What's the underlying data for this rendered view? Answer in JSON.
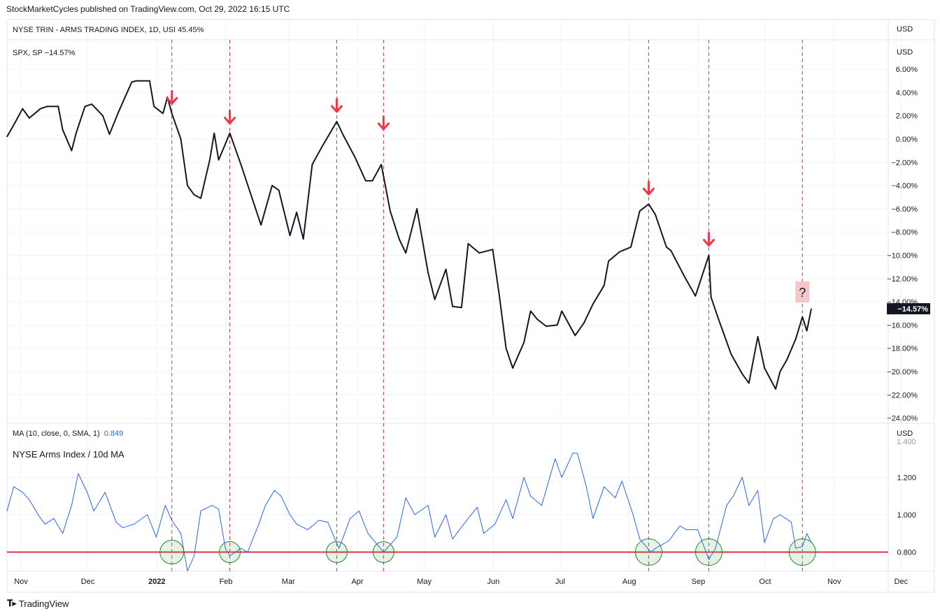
{
  "header": {
    "published": "StockMarketCycles published on TradingView.com, Oct 29, 2022 16:15 UTC"
  },
  "footer": {
    "brand": "TradingView",
    "logo": "tv-logo-icon"
  },
  "panes": {
    "trin_legend": "NYSE TRIN - ARMS TRADING INDEX, 1D, USI  45.45%",
    "trin_unit": "USD",
    "spx_legend": "SPX, SP  −14.57%",
    "spx_unit": "USD",
    "ma_legend_prefix": "MA (10, close, 0, SMA, 1)",
    "ma_legend_value": "0.849",
    "ma_title": "NYSE Arms Index  /  10d MA",
    "ma_unit": "USD",
    "ma_clipped_top_label": "1.400",
    "question_mark": "?"
  },
  "colors": {
    "spx_line": "#131722",
    "ma_line": "#2962ff",
    "arrow": "#f23645",
    "vline": "#e0323c",
    "hline": "#e0323c",
    "circle": "#2e7d32",
    "circle_fill": "rgba(76,175,80,0.15)",
    "grid": "#f0f3fa",
    "last_price_bg": "#131722"
  },
  "chart_data": [
    {
      "type": "line",
      "name": "SPX",
      "y_unit": "percent",
      "ylim": [
        -24.5,
        7
      ],
      "y_ticks": [
        "6.00%",
        "4.00%",
        "2.00%",
        "0.00%",
        "−2.00%",
        "−4.00%",
        "−6.00%",
        "−8.00%",
        "−10.00%",
        "−12.00%",
        "−14.00%",
        "−16.00%",
        "−18.00%",
        "−20.00%",
        "−22.00%",
        "−24.00%"
      ],
      "last_value_label": "−14.57%",
      "x_ticks": [
        "Nov",
        "Dec",
        "2022",
        "Feb",
        "Mar",
        "Apr",
        "May",
        "Jun",
        "Jul",
        "Aug",
        "Sep",
        "Oct",
        "Nov",
        "Dec"
      ],
      "points": [
        [
          "2021-11-01",
          0.2
        ],
        [
          "2021-11-04",
          1.2
        ],
        [
          "2021-11-08",
          2.6
        ],
        [
          "2021-11-11",
          1.8
        ],
        [
          "2021-11-16",
          2.6
        ],
        [
          "2021-11-19",
          2.8
        ],
        [
          "2021-11-24",
          2.8
        ],
        [
          "2021-11-26",
          0.8
        ],
        [
          "2021-11-30",
          -1.0
        ],
        [
          "2021-12-02",
          0.5
        ],
        [
          "2021-12-06",
          2.8
        ],
        [
          "2021-12-09",
          3.0
        ],
        [
          "2021-12-14",
          2.0
        ],
        [
          "2021-12-17",
          0.4
        ],
        [
          "2021-12-21",
          2.3
        ],
        [
          "2021-12-27",
          4.9
        ],
        [
          "2021-12-29",
          5.0
        ],
        [
          "2022-01-04",
          5.0
        ],
        [
          "2022-01-06",
          2.8
        ],
        [
          "2022-01-10",
          2.2
        ],
        [
          "2022-01-12",
          3.6
        ],
        [
          "2022-01-14",
          2.2
        ],
        [
          "2022-01-18",
          0.0
        ],
        [
          "2022-01-21",
          -4.0
        ],
        [
          "2022-01-24",
          -4.8
        ],
        [
          "2022-01-27",
          -5.1
        ],
        [
          "2022-01-31",
          -1.8
        ],
        [
          "2022-02-02",
          0.5
        ],
        [
          "2022-02-04",
          -1.8
        ],
        [
          "2022-02-09",
          0.5
        ],
        [
          "2022-02-14",
          -2.2
        ],
        [
          "2022-02-18",
          -4.5
        ],
        [
          "2022-02-23",
          -7.4
        ],
        [
          "2022-02-28",
          -4.0
        ],
        [
          "2022-03-03",
          -4.4
        ],
        [
          "2022-03-08",
          -8.3
        ],
        [
          "2022-03-11",
          -6.3
        ],
        [
          "2022-03-14",
          -8.6
        ],
        [
          "2022-03-18",
          -2.2
        ],
        [
          "2022-03-22",
          -0.8
        ],
        [
          "2022-03-29",
          1.5
        ],
        [
          "2022-04-01",
          0.3
        ],
        [
          "2022-04-06",
          -1.5
        ],
        [
          "2022-04-11",
          -3.6
        ],
        [
          "2022-04-14",
          -3.6
        ],
        [
          "2022-04-18",
          -2.2
        ],
        [
          "2022-04-22",
          -6.2
        ],
        [
          "2022-04-26",
          -8.6
        ],
        [
          "2022-04-29",
          -9.8
        ],
        [
          "2022-05-04",
          -6.0
        ],
        [
          "2022-05-09",
          -11.5
        ],
        [
          "2022-05-12",
          -13.8
        ],
        [
          "2022-05-17",
          -11.2
        ],
        [
          "2022-05-20",
          -14.4
        ],
        [
          "2022-05-24",
          -14.5
        ],
        [
          "2022-05-27",
          -9.0
        ],
        [
          "2022-06-01",
          -9.8
        ],
        [
          "2022-06-07",
          -9.5
        ],
        [
          "2022-06-10",
          -13.5
        ],
        [
          "2022-06-13",
          -18.0
        ],
        [
          "2022-06-16",
          -19.7
        ],
        [
          "2022-06-21",
          -17.5
        ],
        [
          "2022-06-24",
          -14.8
        ],
        [
          "2022-06-27",
          -15.5
        ],
        [
          "2022-07-01",
          -16.1
        ],
        [
          "2022-07-06",
          -16.0
        ],
        [
          "2022-07-08",
          -14.8
        ],
        [
          "2022-07-14",
          -16.9
        ],
        [
          "2022-07-18",
          -15.8
        ],
        [
          "2022-07-22",
          -14.2
        ],
        [
          "2022-07-27",
          -12.6
        ],
        [
          "2022-07-29",
          -10.5
        ],
        [
          "2022-08-03",
          -9.7
        ],
        [
          "2022-08-08",
          -9.3
        ],
        [
          "2022-08-12",
          -6.2
        ],
        [
          "2022-08-16",
          -5.6
        ],
        [
          "2022-08-19",
          -6.5
        ],
        [
          "2022-08-24",
          -9.3
        ],
        [
          "2022-08-26",
          -9.6
        ],
        [
          "2022-09-01",
          -11.8
        ],
        [
          "2022-09-06",
          -13.5
        ],
        [
          "2022-09-12",
          -10.0
        ],
        [
          "2022-09-13",
          -13.6
        ],
        [
          "2022-09-16",
          -15.3
        ],
        [
          "2022-09-22",
          -18.5
        ],
        [
          "2022-09-27",
          -20.2
        ],
        [
          "2022-09-30",
          -21.0
        ],
        [
          "2022-10-04",
          -17.0
        ],
        [
          "2022-10-07",
          -19.7
        ],
        [
          "2022-10-12",
          -21.5
        ],
        [
          "2022-10-14",
          -20.0
        ],
        [
          "2022-10-17",
          -19.0
        ],
        [
          "2022-10-21",
          -17.2
        ],
        [
          "2022-10-24",
          -15.3
        ],
        [
          "2022-10-26",
          -16.5
        ],
        [
          "2022-10-28",
          -14.6
        ]
      ]
    },
    {
      "type": "line",
      "name": "MA (10, close, 0, SMA, 1)",
      "ylim": [
        0.69,
        1.43
      ],
      "y_ticks": [
        "1.200",
        "1.000",
        "0.800"
      ],
      "last_value": 0.849,
      "reference_line": 0.8,
      "points": [
        [
          "2021-11-01",
          1.02
        ],
        [
          "2021-11-04",
          1.15
        ],
        [
          "2021-11-08",
          1.12
        ],
        [
          "2021-11-11",
          1.08
        ],
        [
          "2021-11-15",
          1.0
        ],
        [
          "2021-11-18",
          0.95
        ],
        [
          "2021-11-22",
          0.98
        ],
        [
          "2021-11-26",
          0.9
        ],
        [
          "2021-11-30",
          1.05
        ],
        [
          "2021-12-03",
          1.22
        ],
        [
          "2021-12-07",
          1.12
        ],
        [
          "2021-12-10",
          1.02
        ],
        [
          "2021-12-15",
          1.12
        ],
        [
          "2021-12-20",
          0.96
        ],
        [
          "2021-12-23",
          0.93
        ],
        [
          "2021-12-28",
          0.95
        ],
        [
          "2022-01-03",
          1.0
        ],
        [
          "2022-01-07",
          0.88
        ],
        [
          "2022-01-11",
          1.05
        ],
        [
          "2022-01-14",
          0.97
        ],
        [
          "2022-01-18",
          0.9
        ],
        [
          "2022-01-21",
          0.7
        ],
        [
          "2022-01-24",
          0.78
        ],
        [
          "2022-01-27",
          1.02
        ],
        [
          "2022-02-01",
          1.05
        ],
        [
          "2022-02-04",
          1.03
        ],
        [
          "2022-02-07",
          0.82
        ],
        [
          "2022-02-09",
          0.78
        ],
        [
          "2022-02-14",
          0.82
        ],
        [
          "2022-02-17",
          0.8
        ],
        [
          "2022-02-22",
          0.95
        ],
        [
          "2022-02-25",
          1.05
        ],
        [
          "2022-03-01",
          1.13
        ],
        [
          "2022-03-04",
          1.1
        ],
        [
          "2022-03-08",
          1.0
        ],
        [
          "2022-03-11",
          0.95
        ],
        [
          "2022-03-16",
          0.92
        ],
        [
          "2022-03-21",
          0.97
        ],
        [
          "2022-03-25",
          0.96
        ],
        [
          "2022-03-30",
          0.82
        ],
        [
          "2022-04-04",
          0.98
        ],
        [
          "2022-04-08",
          1.02
        ],
        [
          "2022-04-12",
          0.9
        ],
        [
          "2022-04-19",
          0.8
        ],
        [
          "2022-04-25",
          0.88
        ],
        [
          "2022-04-29",
          1.09
        ],
        [
          "2022-05-03",
          1.0
        ],
        [
          "2022-05-09",
          1.05
        ],
        [
          "2022-05-12",
          0.88
        ],
        [
          "2022-05-17",
          1.0
        ],
        [
          "2022-05-20",
          0.87
        ],
        [
          "2022-05-25",
          0.95
        ],
        [
          "2022-05-31",
          1.04
        ],
        [
          "2022-06-03",
          0.9
        ],
        [
          "2022-06-08",
          0.95
        ],
        [
          "2022-06-13",
          1.08
        ],
        [
          "2022-06-16",
          0.98
        ],
        [
          "2022-06-21",
          1.2
        ],
        [
          "2022-06-24",
          1.1
        ],
        [
          "2022-06-29",
          1.05
        ],
        [
          "2022-07-05",
          1.3
        ],
        [
          "2022-07-08",
          1.2
        ],
        [
          "2022-07-13",
          1.33
        ],
        [
          "2022-07-15",
          1.33
        ],
        [
          "2022-07-19",
          1.15
        ],
        [
          "2022-07-22",
          0.98
        ],
        [
          "2022-07-27",
          1.15
        ],
        [
          "2022-08-01",
          1.09
        ],
        [
          "2022-08-04",
          1.18
        ],
        [
          "2022-08-09",
          1.0
        ],
        [
          "2022-08-12",
          0.87
        ],
        [
          "2022-08-17",
          0.8
        ],
        [
          "2022-08-19",
          0.82
        ],
        [
          "2022-08-25",
          0.86
        ],
        [
          "2022-08-30",
          0.94
        ],
        [
          "2022-09-02",
          0.92
        ],
        [
          "2022-09-07",
          0.92
        ],
        [
          "2022-09-12",
          0.76
        ],
        [
          "2022-09-15",
          0.82
        ],
        [
          "2022-09-20",
          1.05
        ],
        [
          "2022-09-23",
          1.1
        ],
        [
          "2022-09-27",
          1.2
        ],
        [
          "2022-09-30",
          1.05
        ],
        [
          "2022-10-04",
          1.13
        ],
        [
          "2022-10-07",
          0.85
        ],
        [
          "2022-10-11",
          0.98
        ],
        [
          "2022-10-14",
          1.0
        ],
        [
          "2022-10-19",
          0.96
        ],
        [
          "2022-10-21",
          0.82
        ],
        [
          "2022-10-24",
          0.83
        ],
        [
          "2022-10-26",
          0.9
        ],
        [
          "2022-10-28",
          0.85
        ]
      ]
    }
  ],
  "annotations": {
    "marker_dates": [
      "2022-01-14",
      "2022-02-09",
      "2022-03-29",
      "2022-04-19",
      "2022-08-16",
      "2022-09-12",
      "2022-10-24"
    ],
    "arrow_dates": [
      "2022-01-14",
      "2022-02-09",
      "2022-03-29",
      "2022-04-19",
      "2022-08-16",
      "2022-09-12"
    ],
    "question_date": "2022-10-24"
  }
}
